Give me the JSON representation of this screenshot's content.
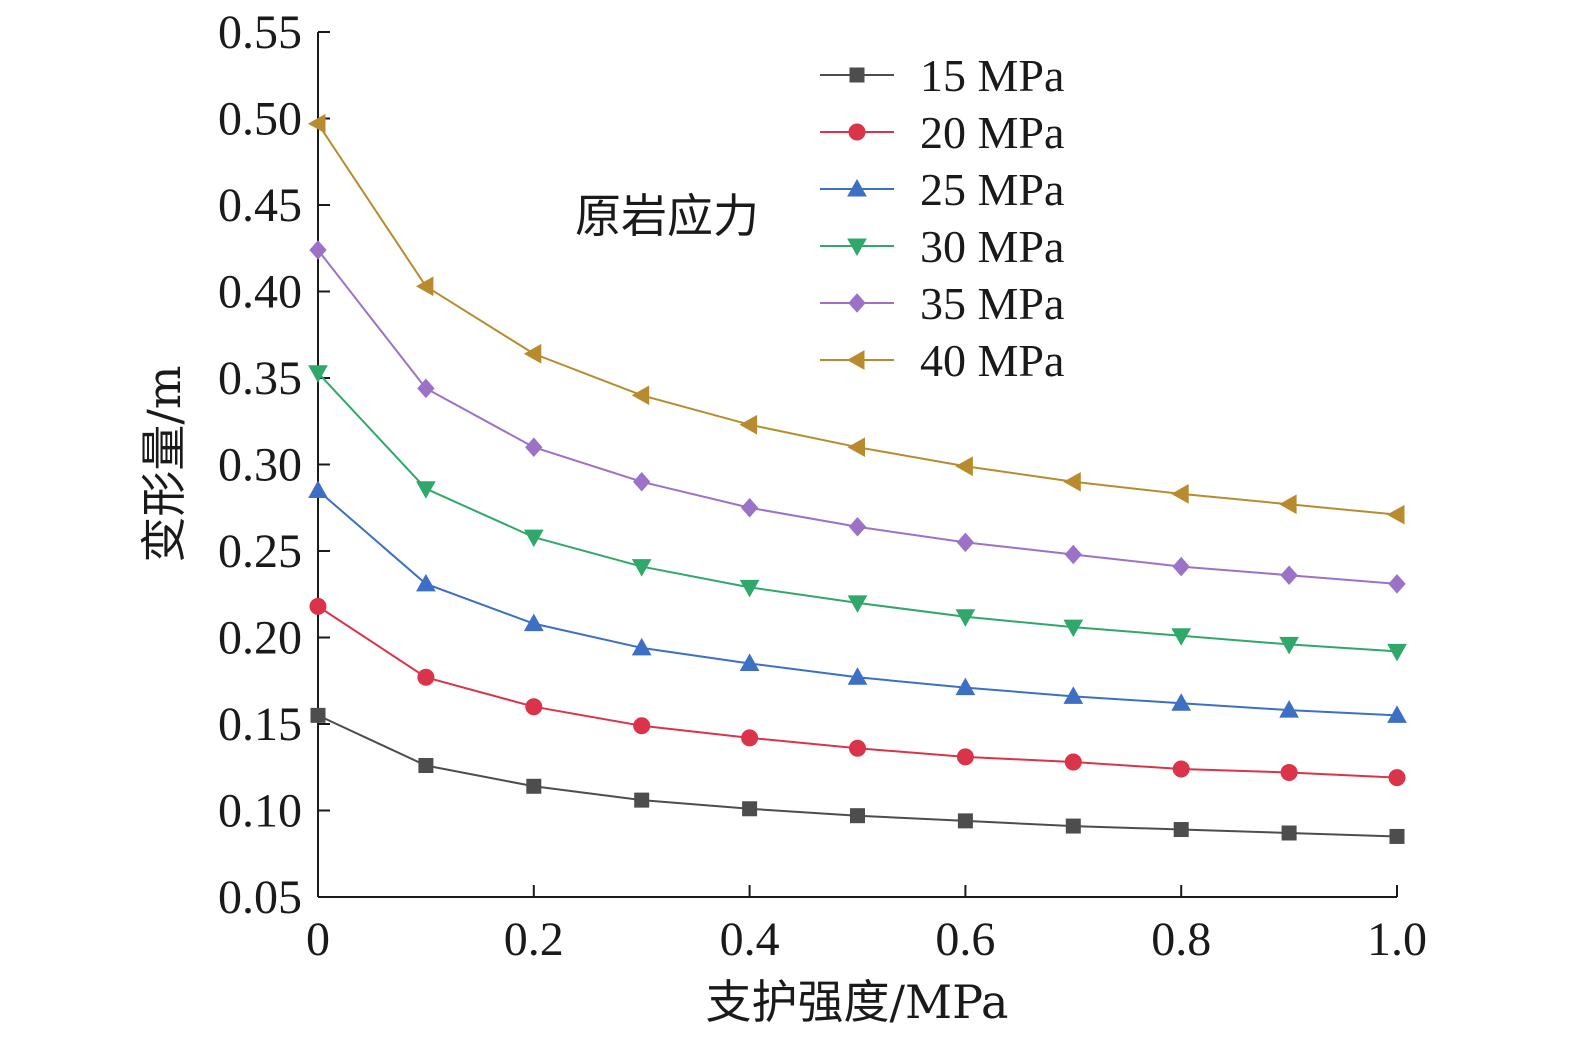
{
  "chart_data": {
    "type": "line",
    "xlabel": "支护强度/MPa",
    "ylabel": "变形量/m",
    "xlim": [
      0,
      1.0
    ],
    "ylim": [
      0.05,
      0.55
    ],
    "x_ticks": [
      "0",
      "0.2",
      "0.4",
      "0.6",
      "0.8",
      "1.0"
    ],
    "y_ticks": [
      "0.05",
      "0.10",
      "0.15",
      "0.20",
      "0.25",
      "0.30",
      "0.35",
      "0.40",
      "0.45",
      "0.50",
      "0.55"
    ],
    "x_tick_values": [
      0,
      0.2,
      0.4,
      0.6,
      0.8,
      1.0
    ],
    "y_tick_values": [
      0.05,
      0.1,
      0.15,
      0.2,
      0.25,
      0.3,
      0.35,
      0.4,
      0.45,
      0.5,
      0.55
    ],
    "legend_title": "原岩应力",
    "legend_position": "top-right",
    "grid": false,
    "x": [
      0,
      0.1,
      0.2,
      0.3,
      0.4,
      0.5,
      0.6,
      0.7,
      0.8,
      0.9,
      1.0
    ],
    "series": [
      {
        "name": "15 MPa",
        "color": "#4d4d4d",
        "marker": "square",
        "values": [
          0.155,
          0.126,
          0.114,
          0.106,
          0.101,
          0.097,
          0.094,
          0.091,
          0.089,
          0.087,
          0.085
        ]
      },
      {
        "name": "20 MPa",
        "color": "#d9344a",
        "marker": "circle",
        "values": [
          0.218,
          0.177,
          0.16,
          0.149,
          0.142,
          0.136,
          0.131,
          0.128,
          0.124,
          0.122,
          0.119
        ]
      },
      {
        "name": "25 MPa",
        "color": "#3d6fc4",
        "marker": "triangle-up",
        "values": [
          0.285,
          0.231,
          0.208,
          0.194,
          0.185,
          0.177,
          0.171,
          0.166,
          0.162,
          0.158,
          0.155
        ]
      },
      {
        "name": "30 MPa",
        "color": "#2fa86a",
        "marker": "triangle-down",
        "values": [
          0.353,
          0.286,
          0.258,
          0.241,
          0.229,
          0.22,
          0.212,
          0.206,
          0.201,
          0.196,
          0.192
        ]
      },
      {
        "name": "35 MPa",
        "color": "#9b72c8",
        "marker": "diamond",
        "values": [
          0.424,
          0.344,
          0.31,
          0.29,
          0.275,
          0.264,
          0.255,
          0.248,
          0.241,
          0.236,
          0.231
        ]
      },
      {
        "name": "40 MPa",
        "color": "#b88c2e",
        "marker": "triangle-left",
        "values": [
          0.497,
          0.403,
          0.364,
          0.34,
          0.323,
          0.31,
          0.299,
          0.29,
          0.283,
          0.277,
          0.271
        ]
      }
    ]
  }
}
